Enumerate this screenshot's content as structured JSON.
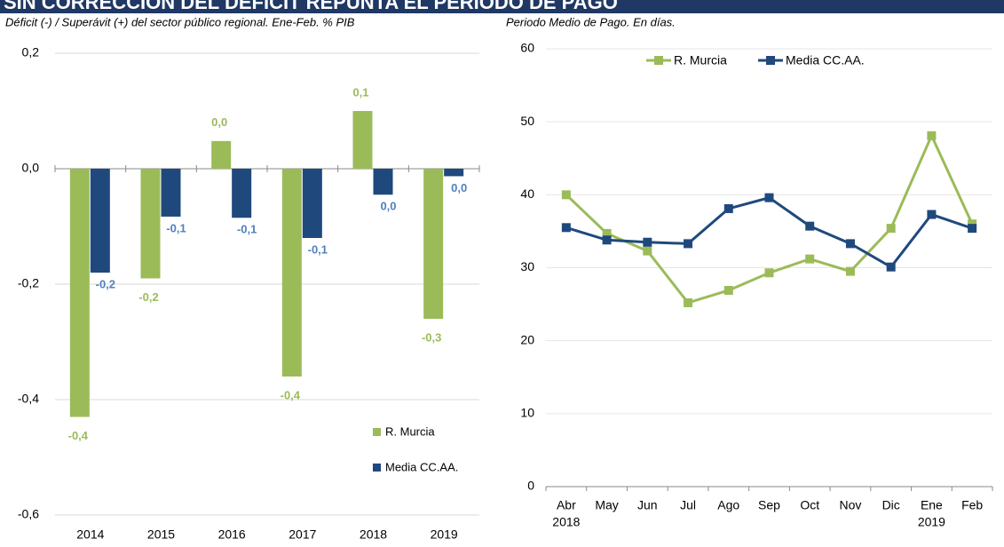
{
  "header": {
    "title": "SIN CORRECCIÓN DEL DÉFICIT REPUNTA EL PERIODO DE PAGO"
  },
  "chart_data": [
    {
      "type": "bar",
      "title": "Déficit (-) / Superávit (+) del sector público regional. Ene-Feb. % PIB",
      "categories": [
        "2014",
        "2015",
        "2016",
        "2017",
        "2018",
        "2019"
      ],
      "series": [
        {
          "name": "R. Murcia",
          "color": "#9bbb59",
          "values": [
            -0.43,
            -0.19,
            0.048,
            -0.36,
            0.1,
            -0.26
          ],
          "value_labels": [
            "-0,4",
            "-0,2",
            "0,0",
            "-0,4",
            "0,1",
            "-0,3"
          ]
        },
        {
          "name": "Media CC.AA.",
          "color": "#1f497d",
          "values": [
            -0.18,
            -0.083,
            -0.085,
            -0.12,
            -0.045,
            -0.013
          ],
          "value_labels": [
            "-0,2",
            "-0,1",
            "-0,1",
            "-0,1",
            "0,0",
            "0,0"
          ]
        }
      ],
      "ylim": [
        -0.6,
        0.2
      ],
      "yticks": [
        {
          "value": -0.6,
          "label": "-0,6"
        },
        {
          "value": -0.4,
          "label": "-0,4"
        },
        {
          "value": -0.2,
          "label": "-0,2"
        },
        {
          "value": 0,
          "label": "0,0"
        },
        {
          "value": 0.2,
          "label": "0,2"
        }
      ],
      "grid": true,
      "legend": "bottom-right"
    },
    {
      "type": "line",
      "title": "Periodo Medio de Pago. En días.",
      "categories": [
        "Abr",
        "May",
        "Jun",
        "Jul",
        "Ago",
        "Sep",
        "Oct",
        "Nov",
        "Dic",
        "Ene",
        "Feb"
      ],
      "years": [
        "2018",
        null,
        null,
        null,
        null,
        null,
        null,
        null,
        null,
        "2019",
        null
      ],
      "series": [
        {
          "name": "R. Murcia",
          "color": "#9bbb59",
          "values": [
            40.0,
            34.7,
            32.3,
            25.2,
            26.9,
            29.3,
            31.2,
            29.5,
            35.4,
            48.1,
            36.0
          ]
        },
        {
          "name": "Media CC.AA.",
          "color": "#1f497d",
          "values": [
            35.5,
            33.8,
            33.5,
            33.3,
            38.1,
            39.6,
            35.7,
            33.3,
            30.1,
            37.3,
            35.4
          ]
        }
      ],
      "ylim": [
        0,
        60
      ],
      "yticks": [
        0,
        10,
        20,
        30,
        40,
        50,
        60
      ],
      "grid": true,
      "legend": "top"
    }
  ]
}
